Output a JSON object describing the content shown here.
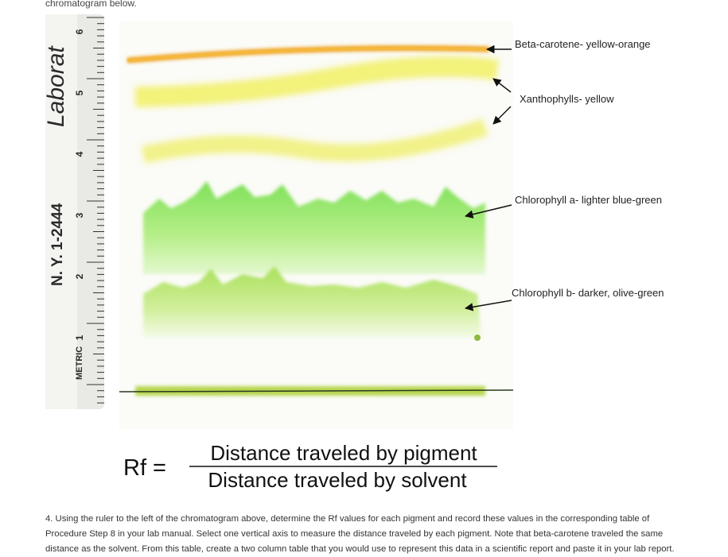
{
  "header": {
    "text": "chromatogram below."
  },
  "ruler": {
    "brand": "Laborat",
    "code": "N. Y. 1-2444",
    "unit": "METRIC",
    "numbers": [
      "6",
      "5",
      "4",
      "3",
      "2",
      "1"
    ]
  },
  "labels": [
    "Beta-carotene- yellow-orange",
    "Xanthophylls- yellow",
    "Chlorophyll a- lighter blue-green",
    "Chlorophyll b- darker, olive-green"
  ],
  "formula": {
    "lhs": "Rf =",
    "numerator": "Distance traveled by pigment",
    "denominator": "Distance traveled by solvent"
  },
  "paragraph": {
    "lines": [
      "4. Using the ruler to the left of the chromatogram above, determine the Rf values for each pigment and record these values in the corresponding table of",
      "Procedure Step 8 in your lab manual.  Select one vertical axis to measure the distance traveled by each pigment. Note that beta-carotene traveled the same",
      "distance as the solvent.  From this table, create a two column table that you would use to represent this data in a scientific report and paste it in your lab report."
    ]
  }
}
